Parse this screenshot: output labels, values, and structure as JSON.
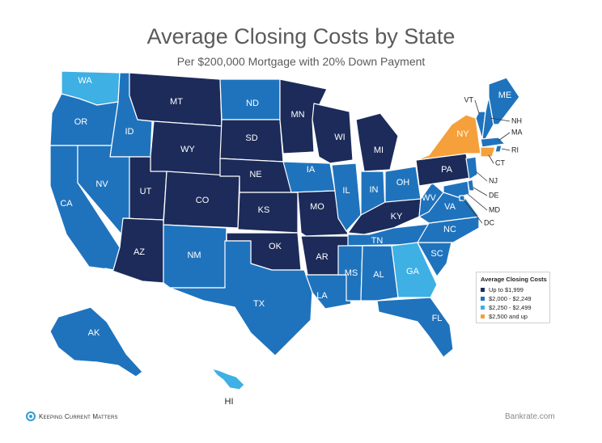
{
  "title": "Average Closing Costs by State",
  "subtitle": "Per $200,000 Mortgage with 20% Down Payment",
  "legend": {
    "title": "Average Closing Costs",
    "items": [
      {
        "label": "Up to $1,999",
        "color": "#1c2b59"
      },
      {
        "label": "$2,000 - $2,249",
        "color": "#1f73bd"
      },
      {
        "label": "$2,250 - $2,499",
        "color": "#3eb0e4"
      },
      {
        "label": "$2,500 and up",
        "color": "#f5a03a"
      }
    ]
  },
  "colors": {
    "tier1": "#1c2b59",
    "tier2": "#1f73bd",
    "tier3": "#3eb0e4",
    "tier4": "#f5a03a"
  },
  "states": [
    {
      "code": "WA",
      "tier": 3
    },
    {
      "code": "OR",
      "tier": 2
    },
    {
      "code": "CA",
      "tier": 2
    },
    {
      "code": "ID",
      "tier": 2
    },
    {
      "code": "NV",
      "tier": 2
    },
    {
      "code": "MT",
      "tier": 1
    },
    {
      "code": "WY",
      "tier": 1
    },
    {
      "code": "UT",
      "tier": 1
    },
    {
      "code": "AZ",
      "tier": 1
    },
    {
      "code": "CO",
      "tier": 1
    },
    {
      "code": "NM",
      "tier": 2
    },
    {
      "code": "ND",
      "tier": 2
    },
    {
      "code": "SD",
      "tier": 1
    },
    {
      "code": "NE",
      "tier": 1
    },
    {
      "code": "KS",
      "tier": 1
    },
    {
      "code": "OK",
      "tier": 1
    },
    {
      "code": "TX",
      "tier": 2
    },
    {
      "code": "MN",
      "tier": 1
    },
    {
      "code": "IA",
      "tier": 2
    },
    {
      "code": "MO",
      "tier": 1
    },
    {
      "code": "AR",
      "tier": 1
    },
    {
      "code": "LA",
      "tier": 2
    },
    {
      "code": "WI",
      "tier": 1
    },
    {
      "code": "IL",
      "tier": 2
    },
    {
      "code": "MI",
      "tier": 1
    },
    {
      "code": "IN",
      "tier": 2
    },
    {
      "code": "OH",
      "tier": 2
    },
    {
      "code": "KY",
      "tier": 1
    },
    {
      "code": "TN",
      "tier": 2
    },
    {
      "code": "MS",
      "tier": 2
    },
    {
      "code": "AL",
      "tier": 2
    },
    {
      "code": "GA",
      "tier": 3
    },
    {
      "code": "FL",
      "tier": 2
    },
    {
      "code": "SC",
      "tier": 2
    },
    {
      "code": "NC",
      "tier": 2
    },
    {
      "code": "VA",
      "tier": 2
    },
    {
      "code": "WV",
      "tier": 2
    },
    {
      "code": "PA",
      "tier": 1
    },
    {
      "code": "NY",
      "tier": 4
    },
    {
      "code": "VT",
      "tier": 2
    },
    {
      "code": "NH",
      "tier": 2
    },
    {
      "code": "ME",
      "tier": 2
    },
    {
      "code": "MA",
      "tier": 2
    },
    {
      "code": "RI",
      "tier": 2
    },
    {
      "code": "CT",
      "tier": 4
    },
    {
      "code": "NJ",
      "tier": 2
    },
    {
      "code": "DE",
      "tier": 2
    },
    {
      "code": "MD",
      "tier": 2
    },
    {
      "code": "DC",
      "tier": 2
    },
    {
      "code": "AK",
      "tier": 2
    },
    {
      "code": "HI",
      "tier": 3
    }
  ],
  "footer": {
    "brand": "Keeping Current Matters",
    "source": "Bankrate.com"
  }
}
